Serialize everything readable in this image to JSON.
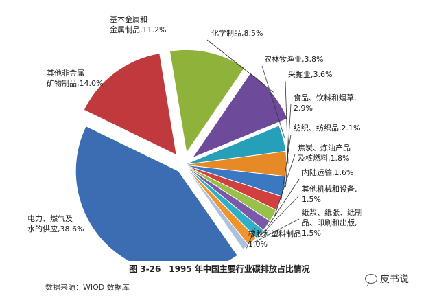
{
  "chart_data": {
    "type": "pie",
    "title": "图 3-26　1995 年中国主要行业碳排放占比情况",
    "source": "数据来源：WIOD 数据库",
    "slices": [
      {
        "lines": [
          "电力、燃气及",
          "水的供应,38.6%"
        ],
        "value": 38.6,
        "color": "#3c6cb1"
      },
      {
        "lines": [
          "其他非金属",
          "矿物制品,14.0%"
        ],
        "value": 14.0,
        "color": "#c0393d"
      },
      {
        "lines": [
          "基本金属和",
          "金属制品,11.2%"
        ],
        "value": 11.2,
        "color": "#8fb23b"
      },
      {
        "lines": [
          "化学制品,8.5%"
        ],
        "value": 8.5,
        "color": "#6d4b9a"
      },
      {
        "lines": [
          "农林牧渔业,3.8%"
        ],
        "value": 3.8,
        "color": "#25a0b8"
      },
      {
        "lines": [
          "采掘业,3.6%"
        ],
        "value": 3.6,
        "color": "#e58a27"
      },
      {
        "lines": [
          "食品、饮料和烟草,",
          "2.9%"
        ],
        "value": 2.9,
        "color": "#3b78c2"
      },
      {
        "lines": [
          "纺织、纺织品,2.1%"
        ],
        "value": 2.1,
        "color": "#d0403f"
      },
      {
        "lines": [
          "焦炭、炼油产品",
          "及核燃料,1.8%"
        ],
        "value": 1.8,
        "color": "#99c04a"
      },
      {
        "lines": [
          "内陆运输,1.6%"
        ],
        "value": 1.6,
        "color": "#7b58a8"
      },
      {
        "lines": [
          "其他机械和设备,",
          "1.5%"
        ],
        "value": 1.5,
        "color": "#2eb1c8"
      },
      {
        "lines": [
          "纸浆、纸张、纸制",
          "品、印刷和出版,",
          "1.5%"
        ],
        "value": 1.5,
        "color": "#f0952e"
      },
      {
        "lines": [
          "橡胶和塑料制品,",
          "1.0%"
        ],
        "value": 1.0,
        "color": "#a9c2e0"
      }
    ]
  },
  "watermark": "皮书说"
}
